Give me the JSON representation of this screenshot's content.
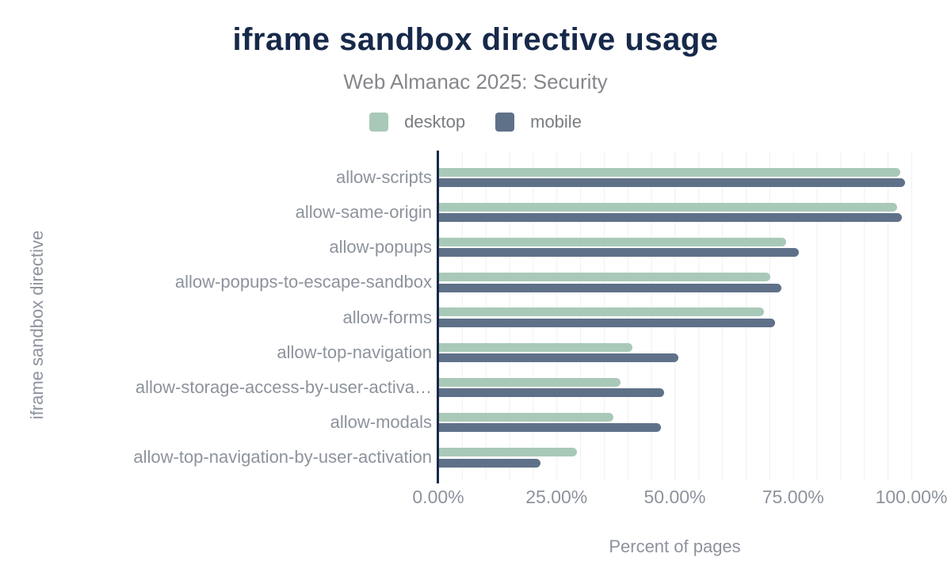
{
  "title": "iframe sandbox directive usage",
  "subtitle": "Web Almanac 2025: Security",
  "legend": [
    {
      "label": "desktop",
      "color": "#a9c9b8"
    },
    {
      "label": "mobile",
      "color": "#5f7189"
    }
  ],
  "colors": {
    "title_navy": "#17294a",
    "axis_line": "#17294a",
    "desktop_bar": "#a9c9b8",
    "mobile_bar": "#5f7189",
    "gridline": "#eef0f1",
    "muted_text": "#8d939d"
  },
  "chart_data": {
    "type": "bar",
    "orientation": "horizontal",
    "title": "iframe sandbox directive usage",
    "subtitle": "Web Almanac 2025: Security",
    "xlabel": "Percent of pages",
    "ylabel": "iframe sandbox directive",
    "xlim": [
      0,
      100
    ],
    "x_tick_labels": [
      "0.00%",
      "25.00%",
      "50.00%",
      "75.00%",
      "100.00%"
    ],
    "grid": "minor vertical gridlines every 5%",
    "legend_position": "top",
    "categories": [
      "allow-scripts",
      "allow-same-origin",
      "allow-popups",
      "allow-popups-to-escape-sandbox",
      "allow-forms",
      "allow-top-navigation",
      "allow-storage-access-by-user-activa…",
      "allow-modals",
      "allow-top-navigation-by-user-activation"
    ],
    "series": [
      {
        "name": "desktop",
        "color": "#a9c9b8",
        "values": [
          97.7,
          97.0,
          73.5,
          70.2,
          68.8,
          41.0,
          38.5,
          37.0,
          29.3
        ]
      },
      {
        "name": "mobile",
        "color": "#5f7189",
        "values": [
          98.7,
          98.0,
          76.2,
          72.5,
          71.2,
          50.8,
          47.7,
          47.1,
          21.6
        ]
      }
    ]
  }
}
